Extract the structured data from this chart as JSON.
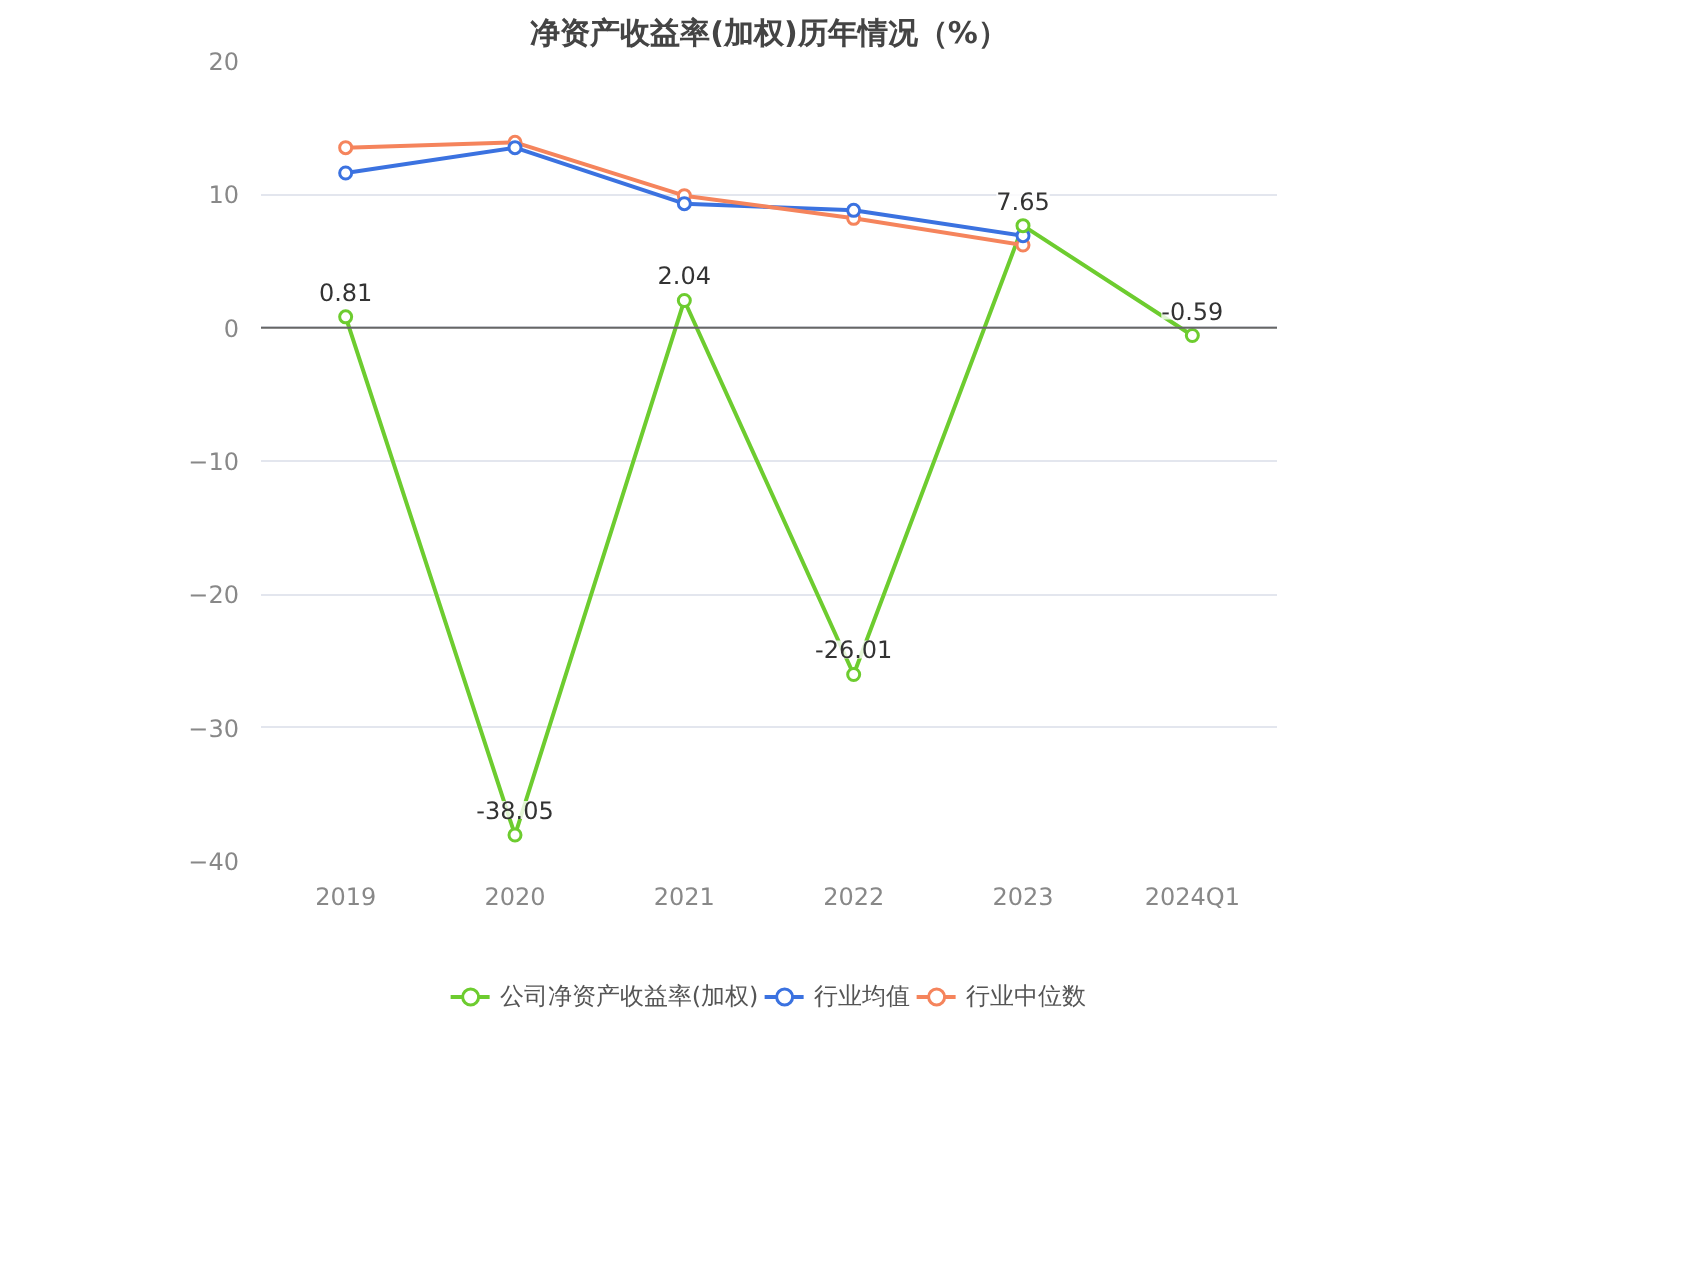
{
  "chart_data": {
    "type": "line",
    "title": "净资产收益率(加权)历年情况（%）",
    "categories": [
      "2019",
      "2020",
      "2021",
      "2022",
      "2023",
      "2024Q1"
    ],
    "series": [
      {
        "name": "公司净资产收益率(加权)",
        "color": "#6dcc2f",
        "values": [
          0.81,
          -38.05,
          2.04,
          -26.01,
          7.65,
          -0.59
        ],
        "data_labels": true
      },
      {
        "name": "行业均值",
        "color": "#3b72e0",
        "values": [
          11.6,
          13.5,
          9.3,
          8.8,
          6.9,
          null
        ]
      },
      {
        "name": "行业中位数",
        "color": "#f5845c",
        "values": [
          13.5,
          13.9,
          9.9,
          8.2,
          6.2,
          null
        ]
      }
    ],
    "ylim": [
      -40,
      20
    ],
    "yticks": [
      -40,
      -30,
      -20,
      -10,
      0,
      10,
      20
    ],
    "grid": "y",
    "legend": "bottom",
    "marker": "circle",
    "line_style": "solid"
  }
}
